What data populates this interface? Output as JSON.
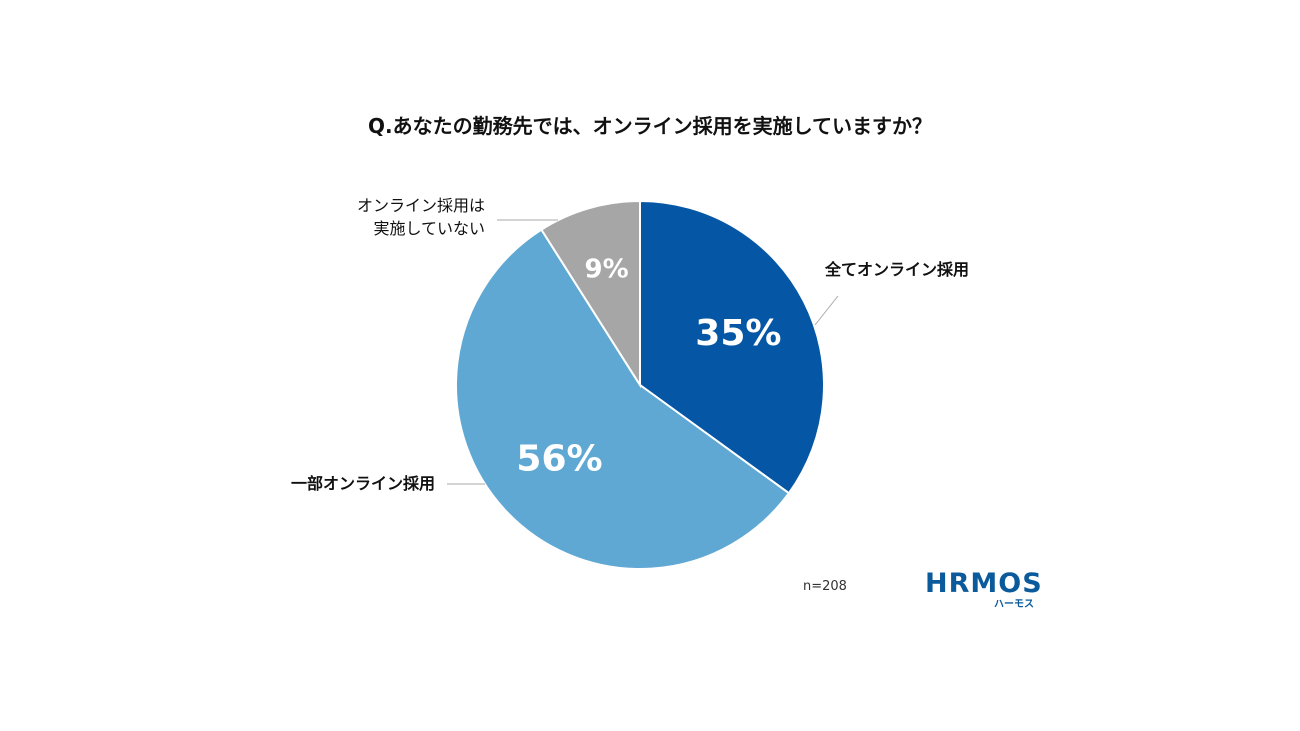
{
  "chart_data": {
    "type": "pie",
    "title": "Q.あなたの勤務先では、オンライン採用を実施していますか？",
    "categories": [
      "全てオンライン採用",
      "一部オンライン採用",
      "オンライン採用は\n実施していない"
    ],
    "values": [
      35,
      56,
      9
    ],
    "value_labels": [
      "35%",
      "56%",
      "9%"
    ],
    "colors": [
      "#0557a5",
      "#5fa8d3",
      "#a6a6a6"
    ],
    "note": "n=208",
    "logo": "HRMOS",
    "logo_sub": "ハーモス"
  }
}
